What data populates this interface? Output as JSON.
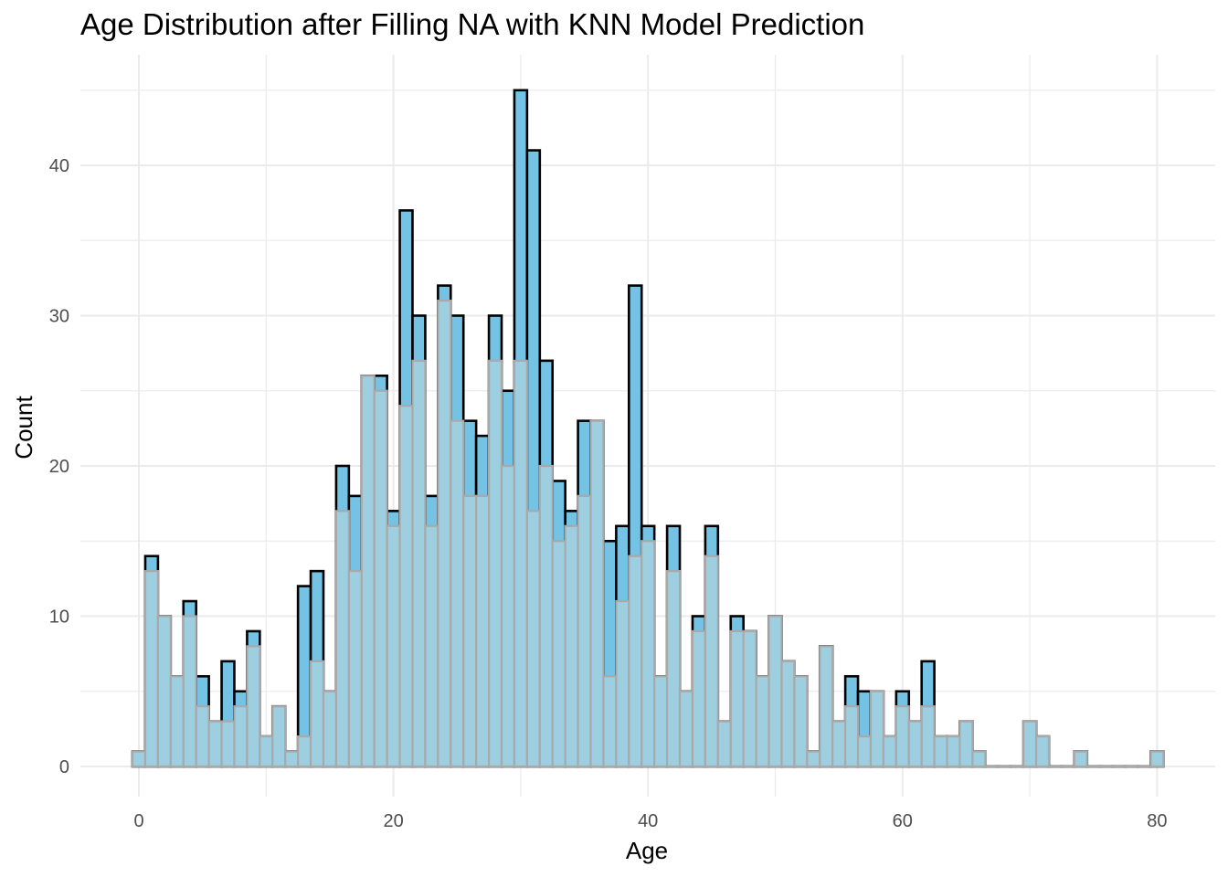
{
  "chart_data": {
    "type": "bar",
    "title": "Age Distribution after Filling NA with KNN Model Prediction",
    "xlabel": "Age",
    "ylabel": "Count",
    "xlim": [
      -1,
      81
    ],
    "ylim": [
      0,
      45
    ],
    "x_ticks": [
      "0",
      "20",
      "40",
      "60",
      "80"
    ],
    "y_ticks": [
      "0",
      "10",
      "20",
      "30",
      "40"
    ],
    "grid": true,
    "bin_width": 1,
    "bin_centers": [
      0,
      1,
      2,
      3,
      4,
      5,
      6,
      7,
      8,
      9,
      10,
      11,
      12,
      13,
      14,
      15,
      16,
      17,
      18,
      19,
      20,
      21,
      22,
      23,
      24,
      25,
      26,
      27,
      28,
      29,
      30,
      31,
      32,
      33,
      34,
      35,
      36,
      37,
      38,
      39,
      40,
      41,
      42,
      43,
      44,
      45,
      46,
      47,
      48,
      49,
      50,
      51,
      52,
      53,
      54,
      55,
      56,
      57,
      58,
      59,
      60,
      61,
      62,
      63,
      64,
      65,
      66,
      67,
      68,
      69,
      70,
      71,
      72,
      73,
      74,
      75,
      76,
      77,
      78,
      79,
      80
    ],
    "series": [
      {
        "fill": "#74c2e4",
        "outline": "#000000",
        "values": [
          1,
          14,
          10,
          6,
          11,
          6,
          3,
          7,
          5,
          9,
          2,
          4,
          1,
          12,
          13,
          5,
          20,
          18,
          26,
          26,
          17,
          37,
          30,
          18,
          32,
          30,
          23,
          22,
          30,
          25,
          45,
          41,
          27,
          19,
          17,
          23,
          23,
          15,
          16,
          32,
          16,
          6,
          16,
          5,
          10,
          16,
          3,
          10,
          9,
          6,
          10,
          7,
          6,
          1,
          8,
          3,
          6,
          5,
          5,
          2,
          5,
          3,
          7,
          2,
          2,
          3,
          1,
          0,
          0,
          0,
          3,
          2,
          0,
          0,
          1,
          0,
          0,
          0,
          0,
          0,
          1
        ]
      },
      {
        "fill": "#9dcfe0",
        "outline": "#a9a9a9",
        "values": [
          1,
          13,
          10,
          6,
          10,
          4,
          3,
          3,
          4,
          8,
          2,
          4,
          1,
          2,
          7,
          5,
          17,
          13,
          26,
          25,
          16,
          24,
          27,
          16,
          31,
          23,
          18,
          18,
          27,
          20,
          27,
          17,
          20,
          15,
          16,
          18,
          23,
          6,
          11,
          14,
          15,
          6,
          13,
          5,
          9,
          14,
          3,
          9,
          9,
          6,
          10,
          7,
          6,
          1,
          8,
          3,
          4,
          2,
          5,
          2,
          4,
          3,
          4,
          2,
          2,
          3,
          1,
          0,
          0,
          0,
          3,
          2,
          0,
          0,
          1,
          0,
          0,
          0,
          0,
          0,
          1
        ]
      }
    ]
  }
}
